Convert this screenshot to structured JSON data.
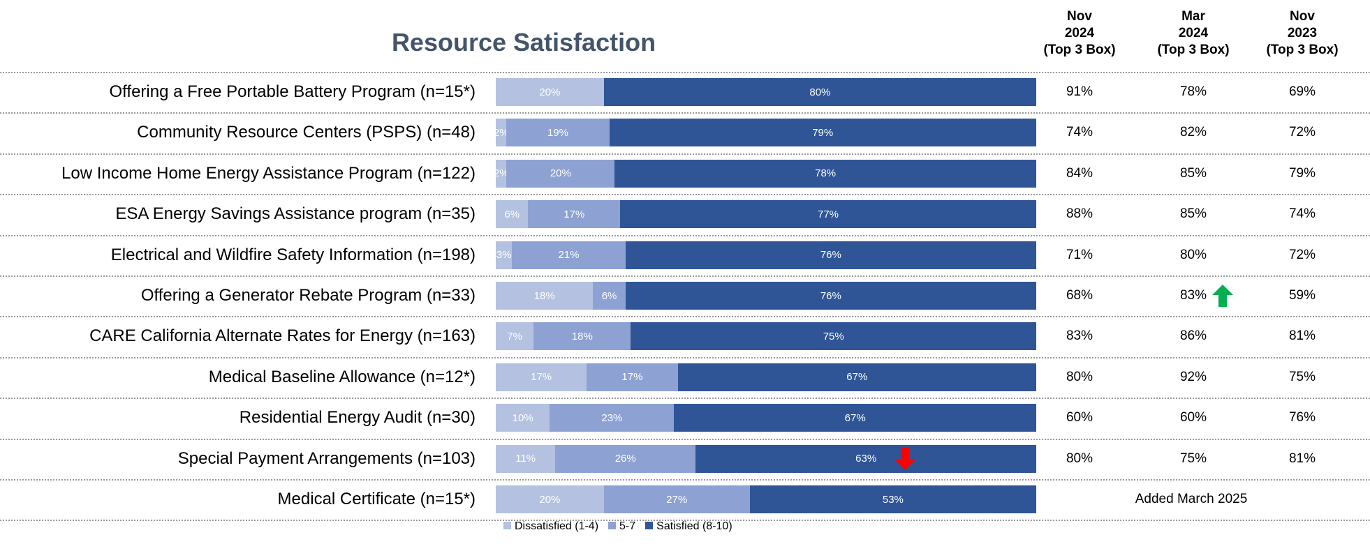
{
  "chart_data": {
    "type": "bar",
    "orientation": "horizontal-stacked-100",
    "title": "Resource Satisfaction",
    "colors": {
      "Dissatisfied (1-4)": "#b4c1e1",
      "5-7": "#8ea1d3",
      "Satisfied (8-10)": "#2f5597"
    },
    "legend_position": "bottom",
    "legend": [
      "Dissatisfied (1-4)",
      "5-7",
      "Satisfied (8-10)"
    ],
    "column_headers": [
      "Nov 2024 (Top 3 Box)",
      "Mar 2024 (Top 3 Box)",
      "Nov 2023 (Top 3 Box)"
    ],
    "col_header_lines": [
      [
        "Nov",
        "2024",
        "(Top 3 Box)"
      ],
      [
        "Mar",
        "2024",
        "(Top 3 Box)"
      ],
      [
        "Nov",
        "2023",
        "(Top 3 Box)"
      ]
    ],
    "categories": [
      "Offering a Free Portable Battery Program (n=15*)",
      "Community Resource Centers (PSPS) (n=48)",
      "Low Income Home Energy Assistance Program (n=122)",
      "ESA Energy Savings Assistance program (n=35)",
      "Electrical and Wildfire Safety Information (n=198)",
      "Offering a Generator Rebate Program (n=33)",
      "CARE California Alternate Rates for Energy (n=163)",
      "Medical Baseline Allowance (n=12*)",
      "Residential Energy Audit (n=30)",
      "Special Payment Arrangements (n=103)",
      "Medical Certificate (n=15*)"
    ],
    "series": [
      {
        "name": "Dissatisfied (1-4)",
        "values": [
          20,
          2,
          2,
          6,
          3,
          18,
          7,
          17,
          10,
          11,
          20
        ]
      },
      {
        "name": "5-7",
        "values": [
          0,
          19,
          20,
          17,
          21,
          6,
          18,
          17,
          23,
          26,
          27
        ]
      },
      {
        "name": "Satisfied (8-10)",
        "values": [
          80,
          79,
          78,
          77,
          76,
          76,
          75,
          67,
          67,
          63,
          53
        ]
      }
    ],
    "top3_table": [
      [
        "91%",
        "78%",
        "69%"
      ],
      [
        "74%",
        "82%",
        "72%"
      ],
      [
        "84%",
        "85%",
        "79%"
      ],
      [
        "88%",
        "85%",
        "74%"
      ],
      [
        "71%",
        "80%",
        "72%"
      ],
      [
        "68%",
        "83%",
        "59%"
      ],
      [
        "83%",
        "86%",
        "81%"
      ],
      [
        "80%",
        "92%",
        "75%"
      ],
      [
        "60%",
        "60%",
        "76%"
      ],
      [
        "80%",
        "75%",
        "81%"
      ],
      null
    ],
    "notes": {
      "10": "Added March 2025"
    },
    "annotations": [
      {
        "row": 5,
        "column": "Mar 2024",
        "type": "up-arrow",
        "color": "#00b050"
      },
      {
        "row": 9,
        "series": "Satisfied (8-10)",
        "type": "down-arrow",
        "color": "#ff0000"
      }
    ]
  }
}
